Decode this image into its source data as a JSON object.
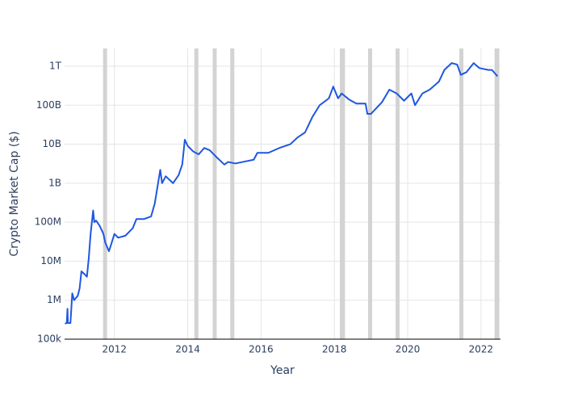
{
  "chart_data": {
    "type": "line",
    "x_label": "Year",
    "y_label": "Crypto Market Cap ($)",
    "log_y": true,
    "grid": true,
    "xlim": [
      2010.64,
      2022.53
    ],
    "xticks": [
      2012,
      2014,
      2016,
      2018,
      2020,
      2022
    ],
    "ylim": [
      100000,
      2850000000000
    ],
    "yticks": [
      {
        "value": 100000,
        "label": "100k"
      },
      {
        "value": 1000000,
        "label": "1M"
      },
      {
        "value": 10000000,
        "label": "10M"
      },
      {
        "value": 100000000,
        "label": "100M"
      },
      {
        "value": 1000000000,
        "label": "1B"
      },
      {
        "value": 10000000000,
        "label": "10B"
      },
      {
        "value": 100000000000,
        "label": "100B"
      },
      {
        "value": 1000000000000,
        "label": "1T"
      }
    ],
    "shade_color": "#d3d3d3",
    "shaded_ranges": [
      [
        2011.69,
        2011.8
      ],
      [
        2014.18,
        2014.29
      ],
      [
        2014.68,
        2014.79
      ],
      [
        2015.16,
        2015.27
      ],
      [
        2018.15,
        2018.29
      ],
      [
        2018.92,
        2019.03
      ],
      [
        2019.67,
        2019.78
      ],
      [
        2021.41,
        2021.52
      ],
      [
        2022.37,
        2022.5
      ]
    ],
    "series": [
      {
        "color": "#1f57e0",
        "x": [
          2010.65,
          2010.7,
          2010.72,
          2010.73,
          2010.8,
          2010.85,
          2010.9,
          2011.0,
          2011.05,
          2011.1,
          2011.2,
          2011.25,
          2011.3,
          2011.35,
          2011.42,
          2011.45,
          2011.5,
          2011.6,
          2011.7,
          2011.75,
          2011.85,
          2011.9,
          2012.0,
          2012.1,
          2012.3,
          2012.5,
          2012.6,
          2012.8,
          2013.0,
          2013.1,
          2013.25,
          2013.3,
          2013.4,
          2013.6,
          2013.75,
          2013.85,
          2013.92,
          2014.0,
          2014.15,
          2014.3,
          2014.45,
          2014.6,
          2014.8,
          2015.0,
          2015.1,
          2015.3,
          2015.5,
          2015.8,
          2015.9,
          2016.2,
          2016.5,
          2016.8,
          2017.0,
          2017.2,
          2017.4,
          2017.6,
          2017.85,
          2017.97,
          2018.1,
          2018.2,
          2018.4,
          2018.6,
          2018.85,
          2018.9,
          2019.0,
          2019.3,
          2019.5,
          2019.7,
          2019.9,
          2020.1,
          2020.2,
          2020.4,
          2020.6,
          2020.85,
          2021.0,
          2021.2,
          2021.35,
          2021.45,
          2021.6,
          2021.8,
          2021.95,
          2022.2,
          2022.3,
          2022.45
        ],
        "values": [
          250000,
          260000,
          600000,
          260000,
          260000,
          1500000,
          1000000,
          1300000,
          2000000,
          5500000,
          4500000,
          4000000,
          12000000,
          50000000,
          200000000,
          100000000,
          110000000,
          80000000,
          50000000,
          30000000,
          18000000,
          25000000,
          50000000,
          40000000,
          45000000,
          70000000,
          120000000,
          120000000,
          140000000,
          300000000,
          2200000000,
          1000000000,
          1500000000,
          1000000000,
          1600000000,
          3000000000,
          13000000000,
          9000000000,
          6500000000,
          5500000000,
          8000000000,
          7000000000,
          4500000000,
          3000000000,
          3500000000,
          3200000000,
          3500000000,
          4000000000,
          6000000000,
          6000000000,
          8000000000,
          10000000000,
          15000000000,
          20000000000,
          50000000000,
          100000000000,
          150000000000,
          300000000000,
          150000000000,
          200000000000,
          140000000000,
          110000000000,
          110000000000,
          60000000000,
          60000000000,
          120000000000,
          250000000000,
          200000000000,
          130000000000,
          200000000000,
          100000000000,
          200000000000,
          250000000000,
          400000000000,
          800000000000,
          1200000000000,
          1100000000000,
          600000000000,
          700000000000,
          1200000000000,
          900000000000,
          800000000000,
          800000000000,
          550000000000
        ]
      }
    ]
  }
}
